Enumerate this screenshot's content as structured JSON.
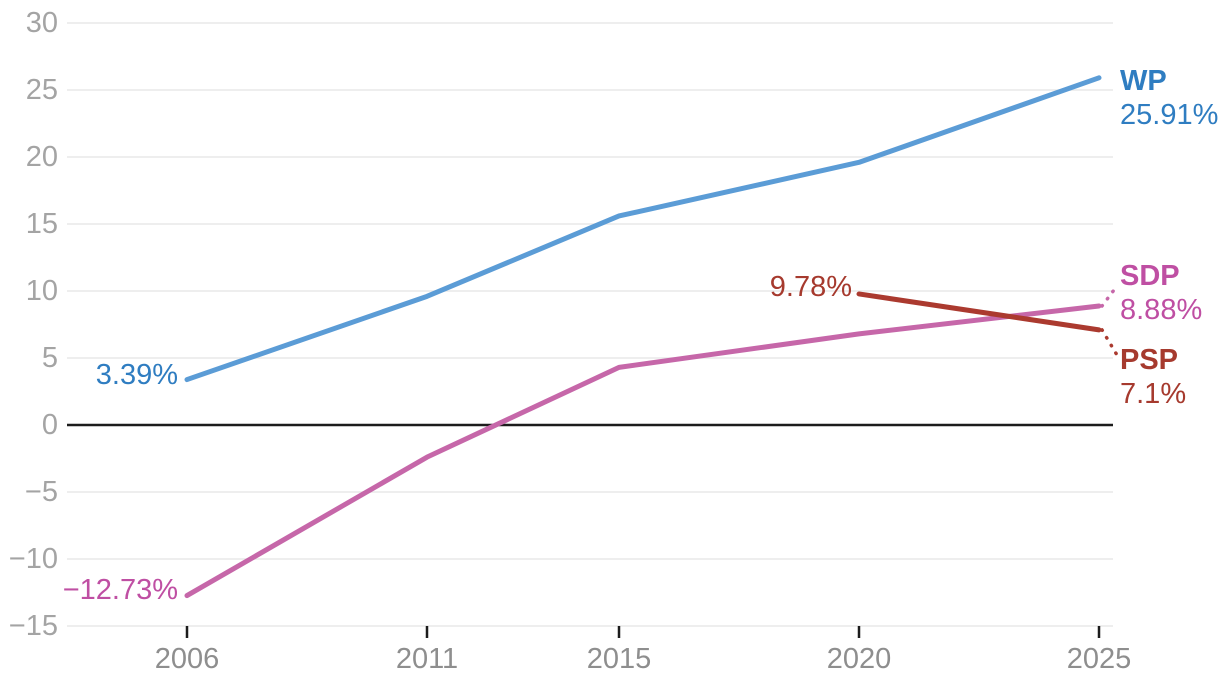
{
  "chart_data": {
    "type": "line",
    "title": "",
    "xlabel": "",
    "ylabel": "",
    "x_years": [
      2006,
      2011,
      2015,
      2020,
      2025
    ],
    "xtick_labels": [
      "2006",
      "2011",
      "2015",
      "2020",
      "2025"
    ],
    "ytick_values": [
      30,
      25,
      20,
      15,
      10,
      5,
      0,
      -5,
      -10,
      -15
    ],
    "ytick_labels": [
      "30",
      "25",
      "20",
      "15",
      "10",
      "5",
      "0",
      "−5",
      "−10",
      "−15"
    ],
    "ylim": [
      -15,
      30
    ],
    "grid": true,
    "zero_baseline": true,
    "legend_position": "end-of-line-labels-right",
    "series": [
      {
        "name": "WP",
        "color": "#5b9cd6",
        "text_color": "#2f7dc1",
        "values": [
          3.39,
          9.6,
          15.6,
          19.6,
          25.91
        ],
        "start_label": "3.39%",
        "end_label": "25.91%",
        "leader": false
      },
      {
        "name": "SDP",
        "color": "#c667a9",
        "text_color": "#bf4fa3",
        "values": [
          -12.73,
          -2.4,
          4.3,
          6.8,
          8.88
        ],
        "start_label": "−12.73%",
        "end_label": "8.88%",
        "leader": true
      },
      {
        "name": "PSP",
        "color": "#ab3a2f",
        "text_color": "#a63a2e",
        "values": [
          null,
          null,
          null,
          9.78,
          7.1
        ],
        "start_label": "9.78%",
        "end_label": "7.1%",
        "leader": true
      }
    ],
    "style": {
      "grid_color": "#e8e8e8",
      "zero_line_color": "#1c1c1c",
      "ytick_color": "#a4a4a4",
      "xtick_color": "#8e8e8e"
    }
  }
}
